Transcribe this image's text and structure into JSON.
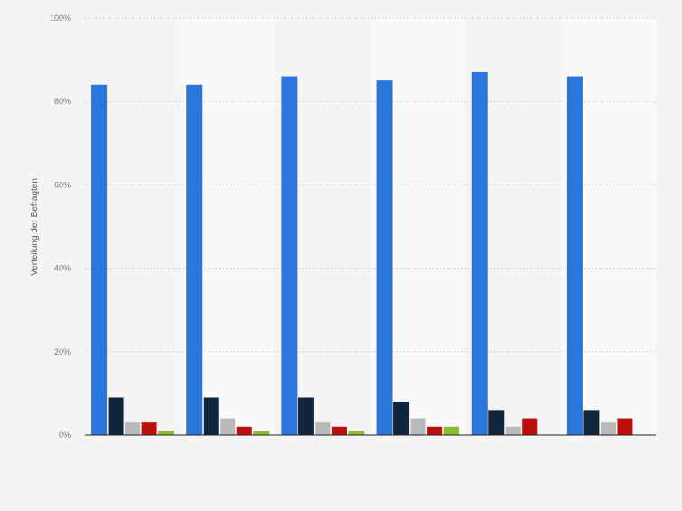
{
  "chart_data": {
    "type": "bar",
    "title": "",
    "xlabel": "",
    "ylabel": "Verteilung der Befragten",
    "ylim": [
      0,
      100
    ],
    "y_ticks": [
      "0%",
      "20%",
      "40%",
      "60%",
      "80%",
      "100%"
    ],
    "categories": [
      "",
      "",
      "",
      "",
      "",
      ""
    ],
    "grid": true,
    "series": [
      {
        "color": "#2a76dd",
        "values": [
          84,
          84,
          86,
          85,
          87,
          86
        ]
      },
      {
        "color": "#10263f",
        "values": [
          9,
          9,
          9,
          8,
          6,
          6
        ]
      },
      {
        "color": "#b9b9b9",
        "values": [
          3,
          4,
          3,
          4,
          2,
          3
        ]
      },
      {
        "color": "#bc0e0e",
        "values": [
          3,
          2,
          2,
          2,
          4,
          4
        ]
      },
      {
        "color": "#8dbe2b",
        "values": [
          1,
          1,
          1,
          2,
          0,
          0
        ]
      }
    ]
  }
}
